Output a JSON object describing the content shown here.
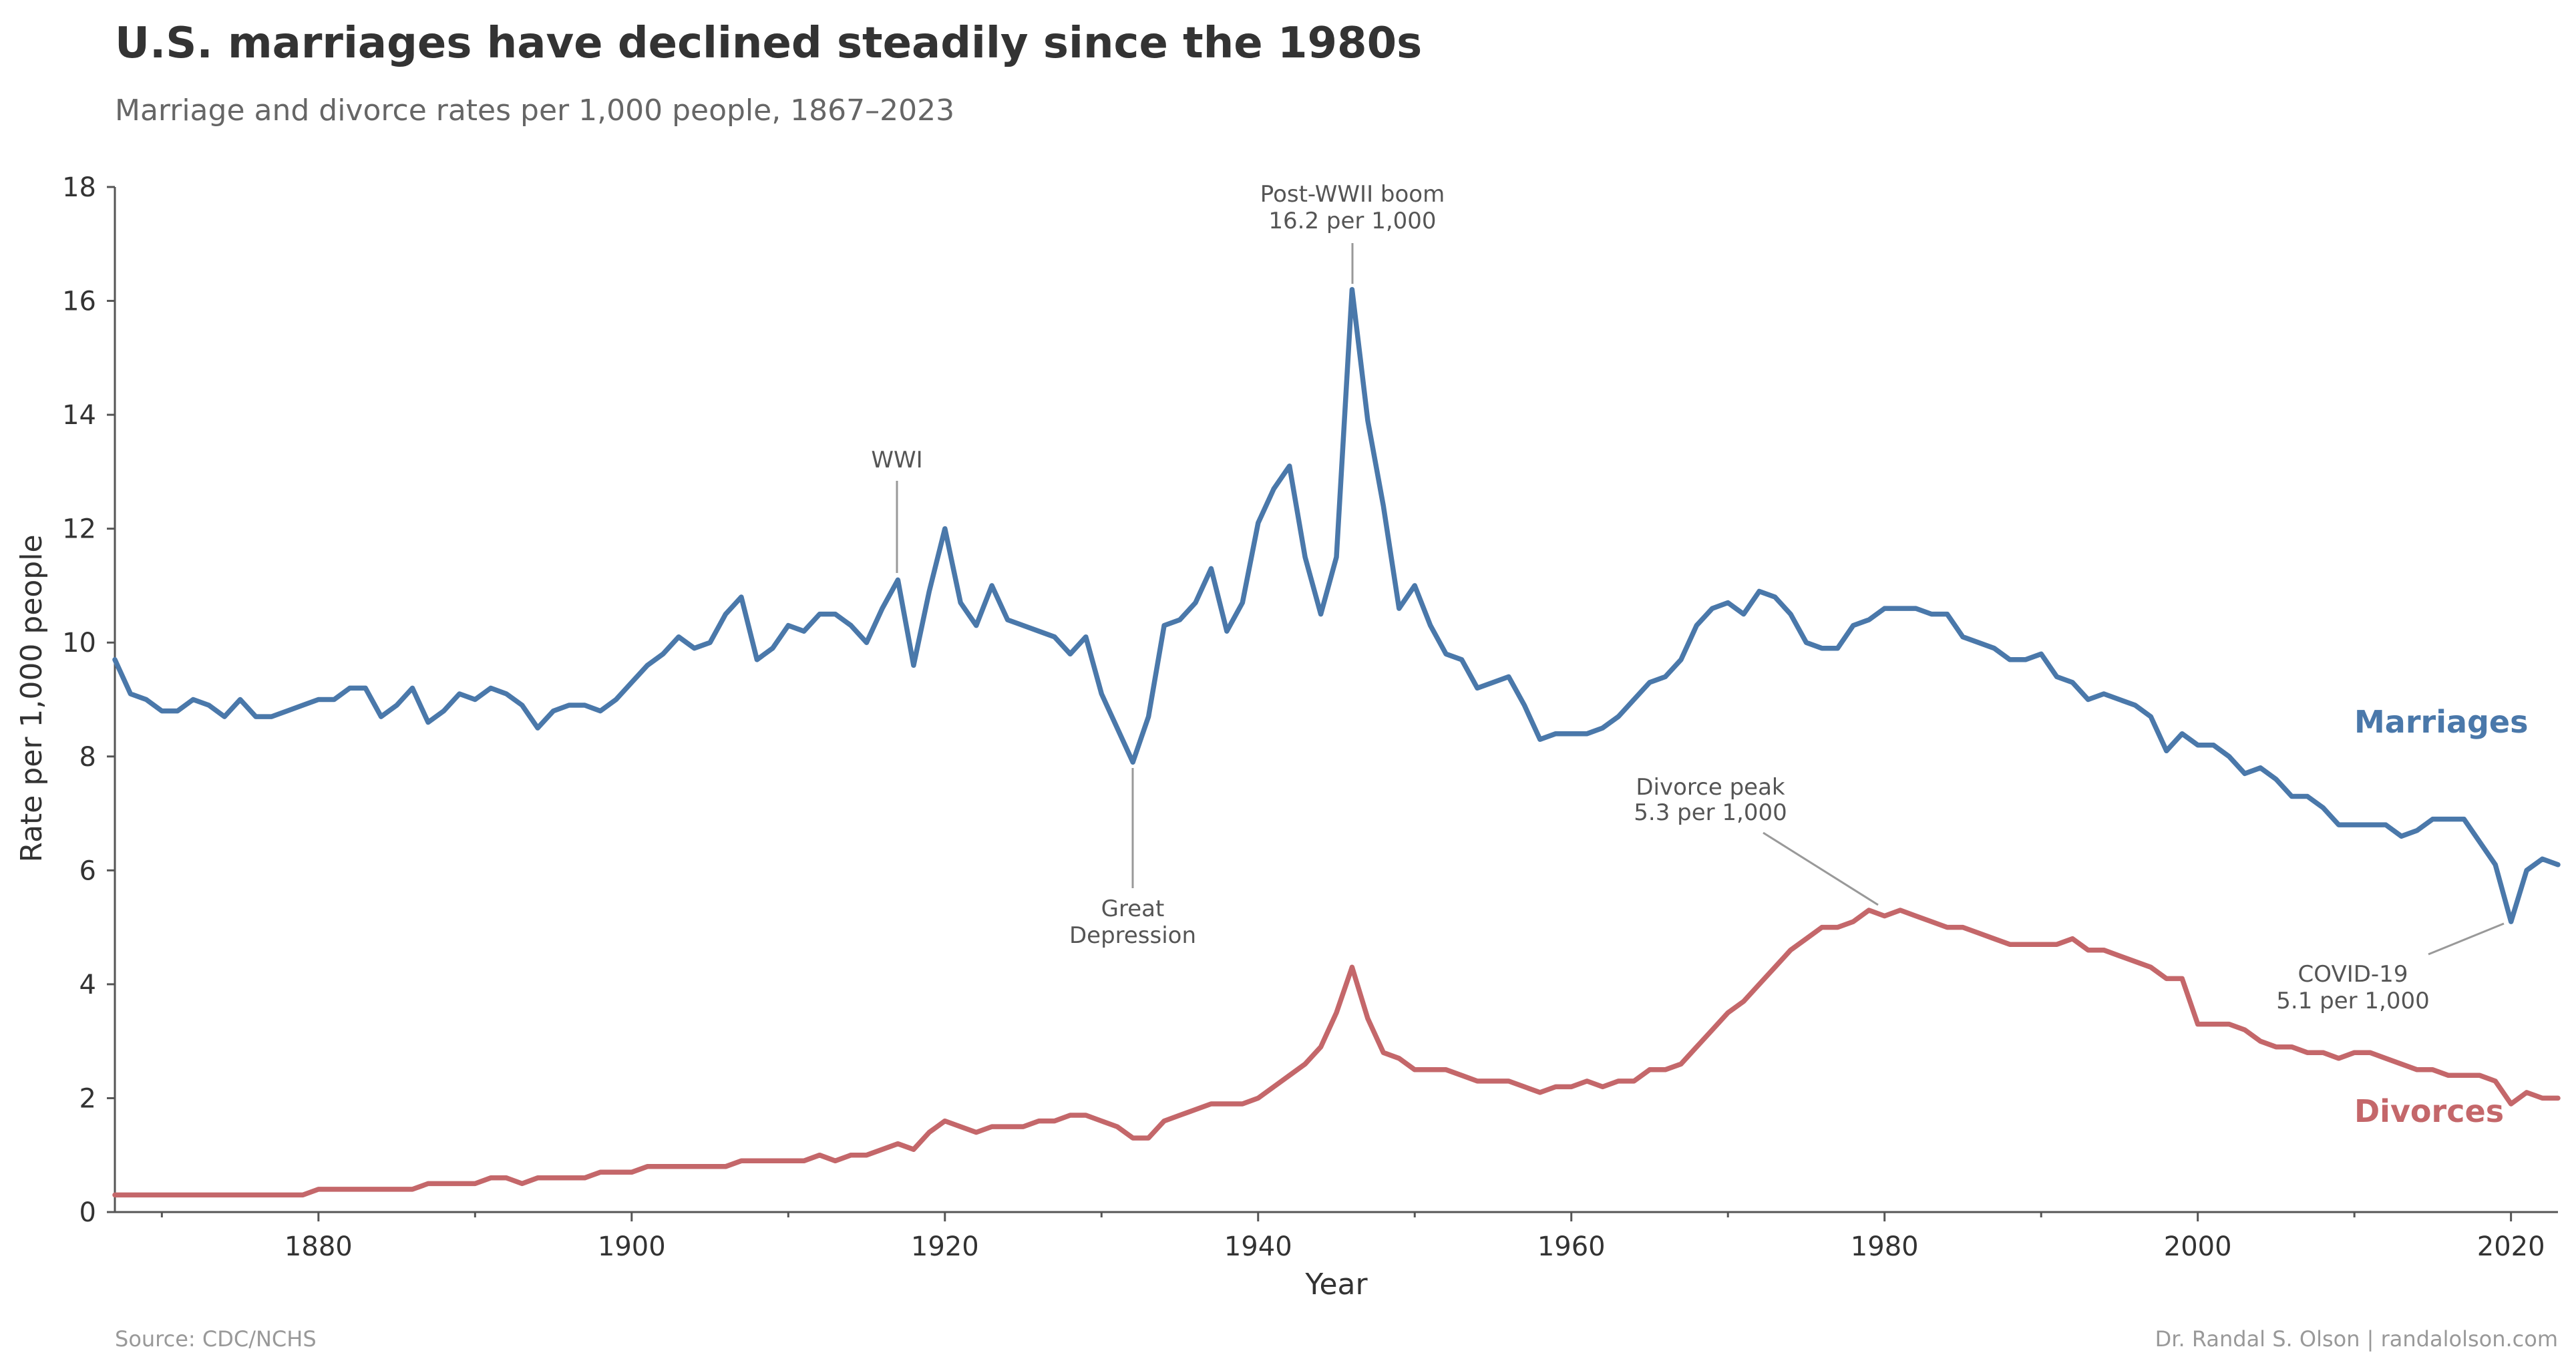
{
  "title": "U.S. marriages have declined steadily since the 1980s",
  "subtitle": "Marriage and divorce rates per 1,000 people, 1867–2023",
  "footer": {
    "source": "Source: CDC/NCHS",
    "credit": "Dr. Randal S. Olson  |  randalolson.com"
  },
  "annotations": {
    "wwi": "WWI",
    "postwar_1": "Post-WWII boom",
    "postwar_2": "16.2 per 1,000",
    "depression_1": "Great",
    "depression_2": "Depression",
    "divorce_peak_1": "Divorce peak",
    "divorce_peak_2": "5.3 per 1,000",
    "covid_1": "COVID-19",
    "covid_2": "5.1 per 1,000"
  },
  "chart_data": {
    "type": "line",
    "title": "U.S. marriages have declined steadily since the 1980s",
    "subtitle": "Marriage and divorce rates per 1,000 people, 1867–2023",
    "xlabel": "Year",
    "ylabel": "Rate per 1,000 people",
    "xlim": [
      1867,
      2023
    ],
    "ylim": [
      0,
      18
    ],
    "x_ticks": [
      "1880",
      "1900",
      "1920",
      "1940",
      "1960",
      "1980",
      "2000",
      "2020"
    ],
    "y_ticks": [
      "0",
      "2",
      "4",
      "6",
      "8",
      "10",
      "12",
      "14",
      "16",
      "18"
    ],
    "grid": false,
    "legend": "inline labels at right",
    "x_start": 1867,
    "series": [
      {
        "name": "Marriages",
        "color": "#4a78aa",
        "values": [
          9.7,
          9.1,
          9.0,
          8.8,
          8.8,
          9.0,
          8.9,
          8.7,
          9.0,
          8.7,
          8.7,
          8.8,
          8.9,
          9.0,
          9.0,
          9.2,
          9.2,
          8.7,
          8.9,
          9.2,
          8.6,
          8.8,
          9.1,
          9.0,
          9.2,
          9.1,
          8.9,
          8.5,
          8.8,
          8.9,
          8.9,
          8.8,
          9.0,
          9.3,
          9.6,
          9.8,
          10.1,
          9.9,
          10.0,
          10.5,
          10.8,
          9.7,
          9.9,
          10.3,
          10.2,
          10.5,
          10.5,
          10.3,
          10.0,
          10.6,
          11.1,
          9.6,
          10.9,
          12.0,
          10.7,
          10.3,
          11.0,
          10.4,
          10.3,
          10.2,
          10.1,
          9.8,
          10.1,
          9.1,
          8.5,
          7.9,
          8.7,
          10.3,
          10.4,
          10.7,
          11.3,
          10.2,
          10.7,
          12.1,
          12.7,
          13.1,
          11.5,
          10.5,
          11.5,
          16.2,
          13.9,
          12.4,
          10.6,
          11.0,
          10.3,
          9.8,
          9.7,
          9.2,
          9.3,
          9.4,
          8.9,
          8.3,
          8.4,
          8.4,
          8.4,
          8.5,
          8.7,
          9.0,
          9.3,
          9.4,
          9.7,
          10.3,
          10.6,
          10.7,
          10.5,
          10.9,
          10.8,
          10.5,
          10.0,
          9.9,
          9.9,
          10.3,
          10.4,
          10.6,
          10.6,
          10.6,
          10.5,
          10.5,
          10.1,
          10.0,
          9.9,
          9.7,
          9.7,
          9.8,
          9.4,
          9.3,
          9.0,
          9.1,
          9.0,
          8.9,
          8.7,
          8.1,
          8.4,
          8.2,
          8.2,
          8.0,
          7.7,
          7.8,
          7.6,
          7.3,
          7.3,
          7.1,
          6.8,
          6.8,
          6.8,
          6.8,
          6.6,
          6.7,
          6.9,
          6.9,
          6.9,
          6.5,
          6.1,
          5.1,
          6.0,
          6.2,
          6.1
        ]
      },
      {
        "name": "Divorces",
        "color": "#c4676a",
        "values": [
          0.3,
          0.3,
          0.3,
          0.3,
          0.3,
          0.3,
          0.3,
          0.3,
          0.3,
          0.3,
          0.3,
          0.3,
          0.3,
          0.4,
          0.4,
          0.4,
          0.4,
          0.4,
          0.4,
          0.4,
          0.5,
          0.5,
          0.5,
          0.5,
          0.6,
          0.6,
          0.5,
          0.6,
          0.6,
          0.6,
          0.6,
          0.7,
          0.7,
          0.7,
          0.8,
          0.8,
          0.8,
          0.8,
          0.8,
          0.8,
          0.9,
          0.9,
          0.9,
          0.9,
          0.9,
          1.0,
          0.9,
          1.0,
          1.0,
          1.1,
          1.2,
          1.1,
          1.4,
          1.6,
          1.5,
          1.4,
          1.5,
          1.5,
          1.5,
          1.6,
          1.6,
          1.7,
          1.7,
          1.6,
          1.5,
          1.3,
          1.3,
          1.6,
          1.7,
          1.8,
          1.9,
          1.9,
          1.9,
          2.0,
          2.2,
          2.4,
          2.6,
          2.9,
          3.5,
          4.3,
          3.4,
          2.8,
          2.7,
          2.5,
          2.5,
          2.5,
          2.4,
          2.3,
          2.3,
          2.3,
          2.2,
          2.1,
          2.2,
          2.2,
          2.3,
          2.2,
          2.3,
          2.3,
          2.5,
          2.5,
          2.6,
          2.9,
          3.2,
          3.5,
          3.7,
          4.0,
          4.3,
          4.6,
          4.8,
          5.0,
          5.0,
          5.1,
          5.3,
          5.2,
          5.3,
          5.2,
          5.1,
          5.0,
          5.0,
          4.9,
          4.8,
          4.7,
          4.7,
          4.7,
          4.7,
          4.8,
          4.6,
          4.6,
          4.5,
          4.4,
          4.3,
          4.1,
          4.1,
          3.3,
          3.3,
          3.3,
          3.2,
          3.0,
          2.9,
          2.9,
          2.8,
          2.8,
          2.7,
          2.8,
          2.8,
          2.7,
          2.6,
          2.5,
          2.5,
          2.4,
          2.4,
          2.4,
          2.3,
          1.9,
          2.1,
          2.0,
          2.0
        ]
      }
    ]
  }
}
